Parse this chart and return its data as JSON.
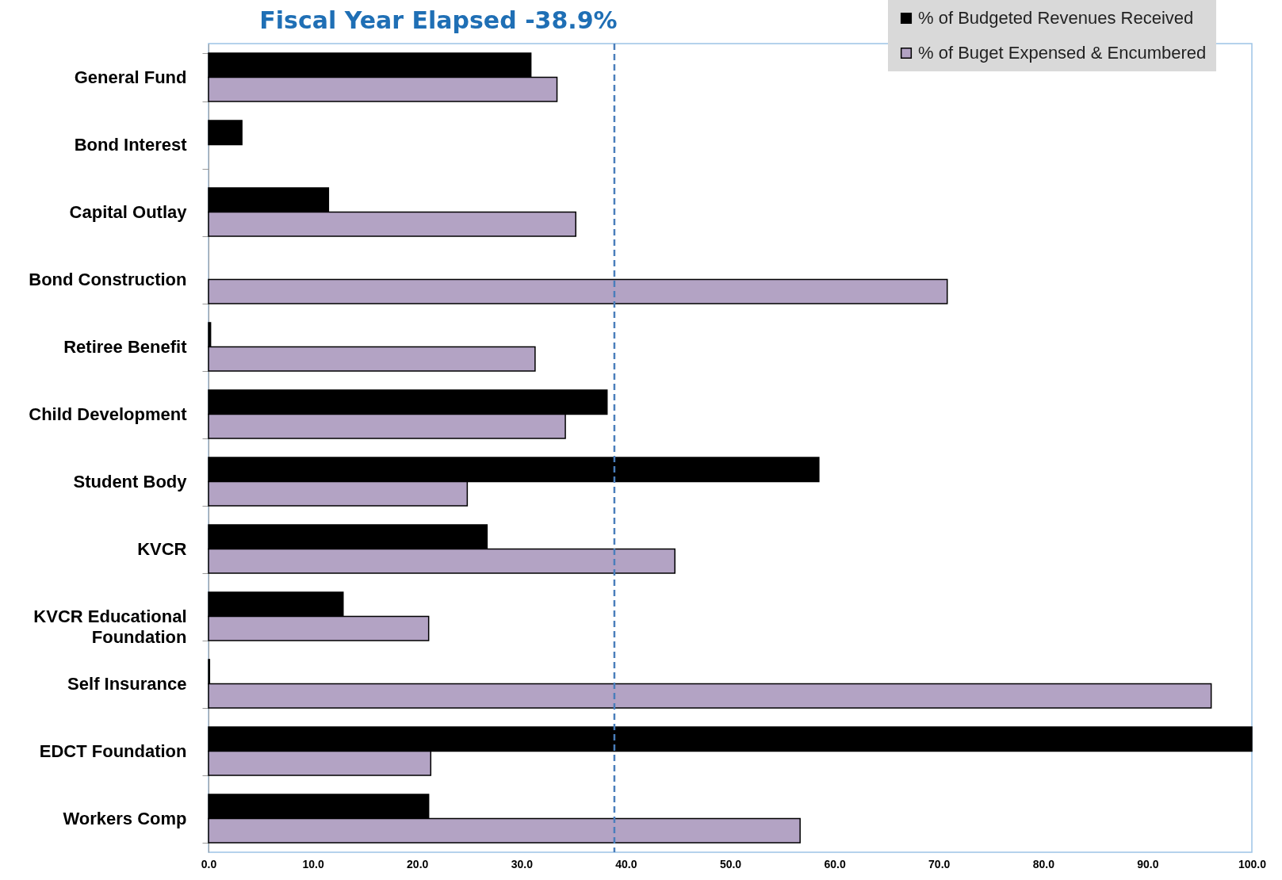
{
  "chart_data": {
    "type": "bar",
    "orientation": "horizontal",
    "title": "Fiscal Year Elapsed -38.9%",
    "categories": [
      "General Fund",
      "Bond Interest",
      "Capital Outlay",
      "Bond Construction",
      "Retiree Benefit",
      "Child Development",
      "Student Body",
      "KVCR",
      "KVCR Educational Foundation",
      "Self Insurance",
      "EDCT Foundation",
      "Workers Comp"
    ],
    "series": [
      {
        "name": "% of Budgeted Revenues Received",
        "color": "#000000",
        "values": [
          30.9,
          3.2,
          11.5,
          null,
          0.2,
          38.2,
          58.5,
          26.7,
          12.9,
          0.1,
          100.0,
          21.1
        ]
      },
      {
        "name": "% of Buget Expensed & Encumbered",
        "color": "#b3a3c4",
        "values": [
          33.4,
          null,
          35.2,
          70.8,
          31.3,
          34.2,
          24.8,
          44.7,
          21.1,
          96.1,
          21.3,
          56.7
        ]
      }
    ],
    "xlim": [
      0,
      100
    ],
    "xticks": [
      {
        "value": 0,
        "label": "0.0"
      },
      {
        "value": 10,
        "label": "10.0"
      },
      {
        "value": 20,
        "label": "20.0"
      },
      {
        "value": 30,
        "label": "30.0"
      },
      {
        "value": 40,
        "label": "40.0"
      },
      {
        "value": 50,
        "label": "50.0"
      },
      {
        "value": 60,
        "label": "60.0"
      },
      {
        "value": 70,
        "label": "70.0"
      },
      {
        "value": 80,
        "label": "80.0"
      },
      {
        "value": 90,
        "label": "90.0"
      },
      {
        "value": 100,
        "label": "100.0"
      }
    ],
    "ref_lines": [
      {
        "axis": "x",
        "value": 38.9,
        "color": "#4a7ebb",
        "line_style": "dashed"
      }
    ],
    "legend": "top right"
  }
}
